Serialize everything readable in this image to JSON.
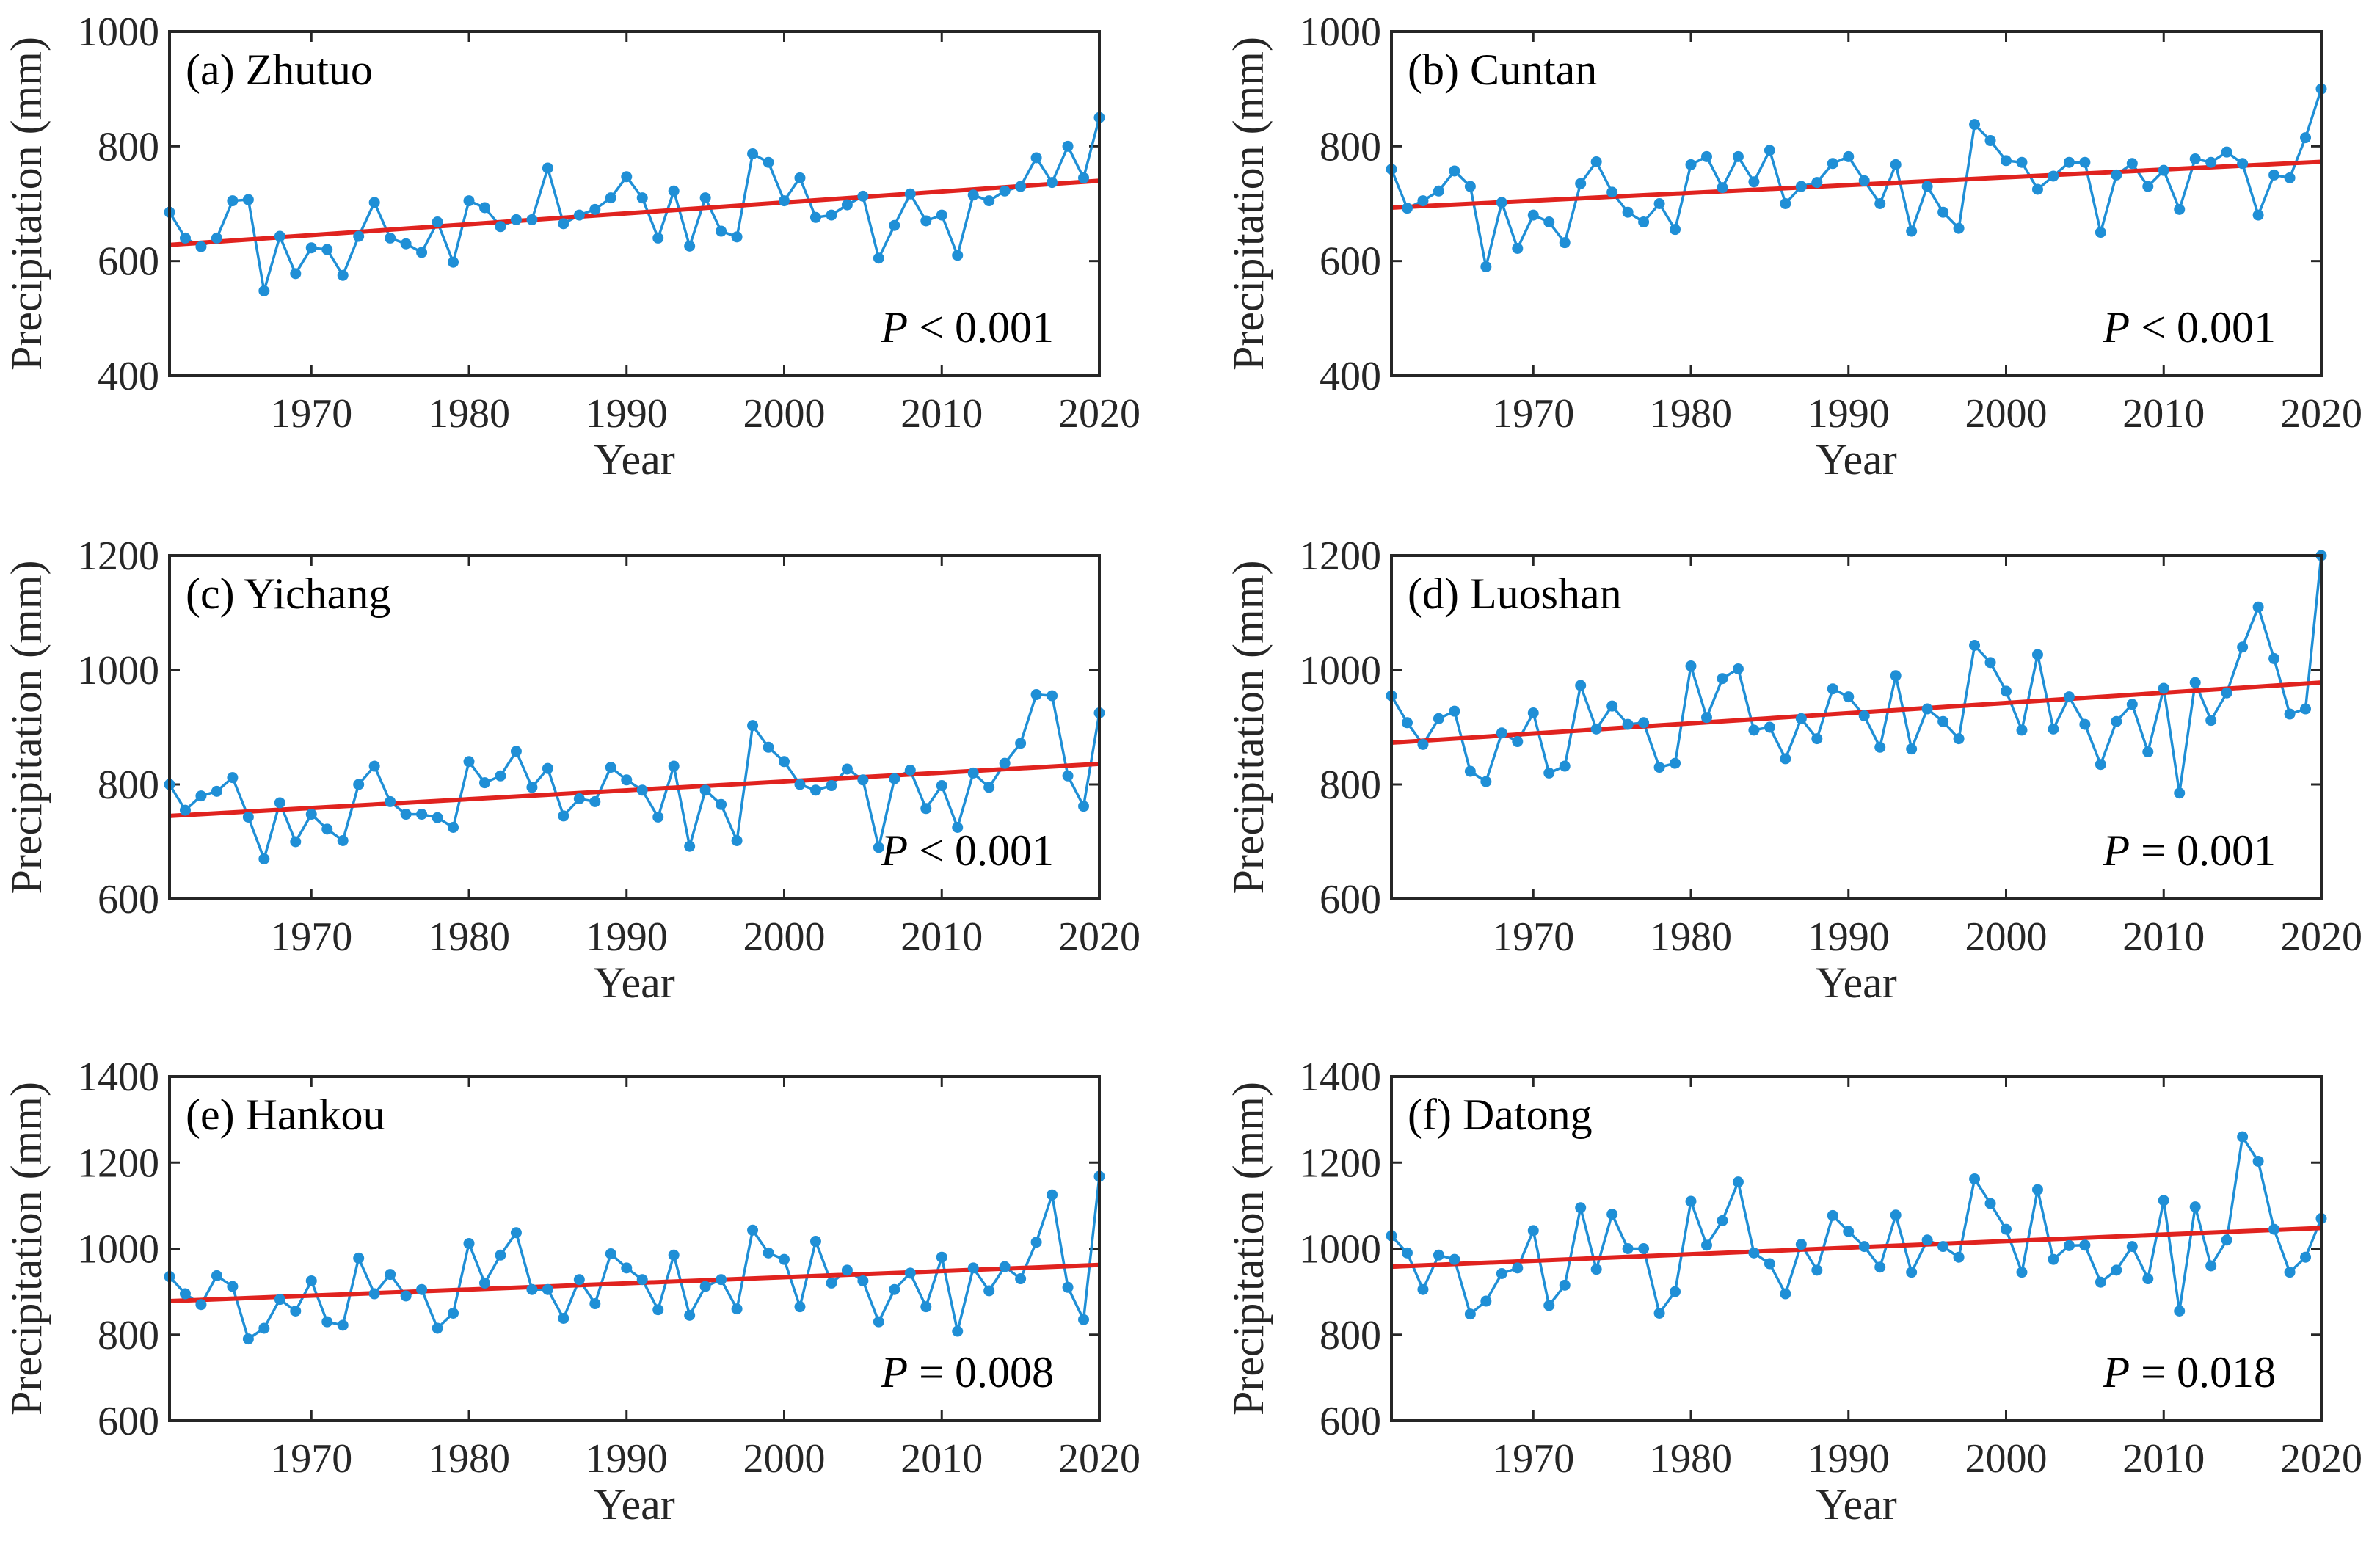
{
  "colors": {
    "series": "#1f8fd6",
    "trend": "#e0231f",
    "axes": "#262626"
  },
  "chart_data": [
    {
      "type": "line",
      "title": "(a) Zhutuo",
      "xlabel": "Year",
      "ylabel": "Precipitation (mm)",
      "xlim": [
        1961,
        2020
      ],
      "ylim": [
        400,
        1000
      ],
      "xticks": [
        1970,
        1980,
        1990,
        2000,
        2010,
        2020
      ],
      "yticks": [
        400,
        600,
        800,
        1000
      ],
      "p_label": "P",
      "p_rest": " < 0.001",
      "trend": [
        [
          1961,
          628
        ],
        [
          2020,
          740
        ]
      ],
      "x": [
        1961,
        1962,
        1963,
        1964,
        1965,
        1966,
        1967,
        1968,
        1969,
        1970,
        1971,
        1972,
        1973,
        1974,
        1975,
        1976,
        1977,
        1978,
        1979,
        1980,
        1981,
        1982,
        1983,
        1984,
        1985,
        1986,
        1987,
        1988,
        1989,
        1990,
        1991,
        1992,
        1993,
        1994,
        1995,
        1996,
        1997,
        1998,
        1999,
        2000,
        2001,
        2002,
        2003,
        2004,
        2005,
        2006,
        2007,
        2008,
        2009,
        2010,
        2011,
        2012,
        2013,
        2014,
        2015,
        2016,
        2017,
        2018,
        2019,
        2020
      ],
      "y": [
        685,
        640,
        625,
        640,
        705,
        707,
        548,
        643,
        578,
        623,
        620,
        575,
        643,
        702,
        640,
        630,
        615,
        668,
        598,
        705,
        693,
        660,
        672,
        672,
        762,
        665,
        680,
        690,
        710,
        747,
        710,
        640,
        722,
        626,
        710,
        652,
        642,
        787,
        772,
        705,
        745,
        676,
        680,
        698,
        713,
        605,
        662,
        717,
        670,
        680,
        610,
        715,
        705,
        722,
        730,
        780,
        737,
        800,
        745,
        850
      ]
    },
    {
      "type": "line",
      "title": "(b) Cuntan",
      "xlabel": "Year",
      "ylabel": "Precipitation (mm)",
      "xlim": [
        1961,
        2020
      ],
      "ylim": [
        400,
        1000
      ],
      "xticks": [
        1970,
        1980,
        1990,
        2000,
        2010,
        2020
      ],
      "yticks": [
        400,
        600,
        800,
        1000
      ],
      "p_label": "P",
      "p_rest": " < 0.001",
      "trend": [
        [
          1961,
          693
        ],
        [
          2020,
          773
        ]
      ],
      "x": [
        1961,
        1962,
        1963,
        1964,
        1965,
        1966,
        1967,
        1968,
        1969,
        1970,
        1971,
        1972,
        1973,
        1974,
        1975,
        1976,
        1977,
        1978,
        1979,
        1980,
        1981,
        1982,
        1983,
        1984,
        1985,
        1986,
        1987,
        1988,
        1989,
        1990,
        1991,
        1992,
        1993,
        1994,
        1995,
        1996,
        1997,
        1998,
        1999,
        2000,
        2001,
        2002,
        2003,
        2004,
        2005,
        2006,
        2007,
        2008,
        2009,
        2010,
        2011,
        2012,
        2013,
        2014,
        2015,
        2016,
        2017,
        2018,
        2019,
        2020
      ],
      "y": [
        760,
        692,
        705,
        722,
        757,
        730,
        590,
        702,
        622,
        680,
        668,
        632,
        735,
        773,
        720,
        685,
        668,
        700,
        655,
        768,
        782,
        728,
        782,
        738,
        793,
        700,
        730,
        737,
        770,
        782,
        740,
        700,
        768,
        652,
        730,
        685,
        657,
        838,
        810,
        775,
        772,
        725,
        748,
        772,
        772,
        650,
        750,
        770,
        730,
        758,
        690,
        778,
        772,
        790,
        770,
        680,
        750,
        745,
        815,
        900
      ]
    },
    {
      "type": "line",
      "title": "(c) Yichang",
      "xlabel": "Year",
      "ylabel": "Precipitation (mm)",
      "xlim": [
        1961,
        2020
      ],
      "ylim": [
        600,
        1200
      ],
      "xticks": [
        1970,
        1980,
        1990,
        2000,
        2010,
        2020
      ],
      "yticks": [
        600,
        800,
        1000,
        1200
      ],
      "p_label": "P",
      "p_rest": " < 0.001",
      "trend": [
        [
          1961,
          745
        ],
        [
          2020,
          836
        ]
      ],
      "x": [
        1961,
        1962,
        1963,
        1964,
        1965,
        1966,
        1967,
        1968,
        1969,
        1970,
        1971,
        1972,
        1973,
        1974,
        1975,
        1976,
        1977,
        1978,
        1979,
        1980,
        1981,
        1982,
        1983,
        1984,
        1985,
        1986,
        1987,
        1988,
        1989,
        1990,
        1991,
        1992,
        1993,
        1994,
        1995,
        1996,
        1997,
        1998,
        1999,
        2000,
        2001,
        2002,
        2003,
        2004,
        2005,
        2006,
        2007,
        2008,
        2009,
        2010,
        2011,
        2012,
        2013,
        2014,
        2015,
        2016,
        2017,
        2018,
        2019,
        2020
      ],
      "y": [
        800,
        755,
        780,
        788,
        812,
        743,
        670,
        768,
        700,
        748,
        722,
        702,
        800,
        832,
        770,
        748,
        748,
        742,
        725,
        840,
        803,
        815,
        858,
        795,
        828,
        745,
        775,
        770,
        830,
        808,
        790,
        743,
        832,
        692,
        790,
        765,
        702,
        903,
        865,
        840,
        800,
        790,
        798,
        827,
        808,
        690,
        810,
        825,
        758,
        798,
        725,
        820,
        795,
        837,
        872,
        957,
        955,
        815,
        762,
        925
      ]
    },
    {
      "type": "line",
      "title": "(d) Luoshan",
      "xlabel": "Year",
      "ylabel": "Precipitation (mm)",
      "xlim": [
        1961,
        2020
      ],
      "ylim": [
        600,
        1200
      ],
      "xticks": [
        1970,
        1980,
        1990,
        2000,
        2010,
        2020
      ],
      "yticks": [
        600,
        800,
        1000,
        1200
      ],
      "p_label": "P",
      "p_rest": " = 0.001",
      "trend": [
        [
          1961,
          873
        ],
        [
          2020,
          978
        ]
      ],
      "x": [
        1961,
        1962,
        1963,
        1964,
        1965,
        1966,
        1967,
        1968,
        1969,
        1970,
        1971,
        1972,
        1973,
        1974,
        1975,
        1976,
        1977,
        1978,
        1979,
        1980,
        1981,
        1982,
        1983,
        1984,
        1985,
        1986,
        1987,
        1988,
        1989,
        1990,
        1991,
        1992,
        1993,
        1994,
        1995,
        1996,
        1997,
        1998,
        1999,
        2000,
        2001,
        2002,
        2003,
        2004,
        2005,
        2006,
        2007,
        2008,
        2009,
        2010,
        2011,
        2012,
        2013,
        2014,
        2015,
        2016,
        2017,
        2018,
        2019,
        2020
      ],
      "y": [
        955,
        908,
        870,
        915,
        928,
        823,
        805,
        890,
        875,
        925,
        820,
        832,
        973,
        897,
        937,
        905,
        908,
        830,
        837,
        1007,
        917,
        985,
        1002,
        895,
        900,
        845,
        915,
        880,
        967,
        953,
        920,
        865,
        990,
        862,
        932,
        910,
        880,
        1043,
        1013,
        963,
        895,
        1027,
        897,
        953,
        905,
        835,
        910,
        940,
        857,
        968,
        785,
        978,
        912,
        960,
        1040,
        1110,
        1020,
        923,
        932,
        1200
      ]
    },
    {
      "type": "line",
      "title": "(e) Hankou",
      "xlabel": "Year",
      "ylabel": "Precipitation (mm)",
      "xlim": [
        1961,
        2020
      ],
      "ylim": [
        600,
        1400
      ],
      "xticks": [
        1970,
        1980,
        1990,
        2000,
        2010,
        2020
      ],
      "yticks": [
        600,
        800,
        1000,
        1200,
        1400
      ],
      "p_label": "P",
      "p_rest": " = 0.008",
      "trend": [
        [
          1961,
          878
        ],
        [
          2020,
          962
        ]
      ],
      "x": [
        1961,
        1962,
        1963,
        1964,
        1965,
        1966,
        1967,
        1968,
        1969,
        1970,
        1971,
        1972,
        1973,
        1974,
        1975,
        1976,
        1977,
        1978,
        1979,
        1980,
        1981,
        1982,
        1983,
        1984,
        1985,
        1986,
        1987,
        1988,
        1989,
        1990,
        1991,
        1992,
        1993,
        1994,
        1995,
        1996,
        1997,
        1998,
        1999,
        2000,
        2001,
        2002,
        2003,
        2004,
        2005,
        2006,
        2007,
        2008,
        2009,
        2010,
        2011,
        2012,
        2013,
        2014,
        2015,
        2016,
        2017,
        2018,
        2019,
        2020
      ],
      "y": [
        935,
        895,
        870,
        937,
        912,
        790,
        815,
        882,
        855,
        925,
        830,
        822,
        978,
        895,
        940,
        890,
        905,
        815,
        850,
        1012,
        920,
        985,
        1037,
        905,
        905,
        838,
        928,
        872,
        988,
        955,
        928,
        858,
        985,
        845,
        912,
        928,
        860,
        1043,
        990,
        975,
        865,
        1017,
        920,
        950,
        925,
        830,
        905,
        943,
        865,
        980,
        808,
        955,
        902,
        958,
        930,
        1015,
        1125,
        910,
        835,
        1168
      ]
    },
    {
      "type": "line",
      "title": "(f) Datong",
      "xlabel": "Year",
      "ylabel": "Precipitation (mm)",
      "xlim": [
        1961,
        2020
      ],
      "ylim": [
        600,
        1400
      ],
      "xticks": [
        1970,
        1980,
        1990,
        2000,
        2010,
        2020
      ],
      "yticks": [
        600,
        800,
        1000,
        1200,
        1400
      ],
      "p_label": "P",
      "p_rest": " = 0.018",
      "trend": [
        [
          1961,
          958
        ],
        [
          2020,
          1048
        ]
      ],
      "x": [
        1961,
        1962,
        1963,
        1964,
        1965,
        1966,
        1967,
        1968,
        1969,
        1970,
        1971,
        1972,
        1973,
        1974,
        1975,
        1976,
        1977,
        1978,
        1979,
        1980,
        1981,
        1982,
        1983,
        1984,
        1985,
        1986,
        1987,
        1988,
        1989,
        1990,
        1991,
        1992,
        1993,
        1994,
        1995,
        1996,
        1997,
        1998,
        1999,
        2000,
        2001,
        2002,
        2003,
        2004,
        2005,
        2006,
        2007,
        2008,
        2009,
        2010,
        2011,
        2012,
        2013,
        2014,
        2015,
        2016,
        2017,
        2018,
        2019,
        2020
      ],
      "y": [
        1030,
        990,
        905,
        985,
        975,
        848,
        878,
        942,
        955,
        1042,
        868,
        915,
        1095,
        952,
        1080,
        1000,
        1000,
        850,
        900,
        1110,
        1008,
        1065,
        1155,
        990,
        965,
        895,
        1010,
        950,
        1077,
        1040,
        1005,
        957,
        1078,
        945,
        1020,
        1005,
        980,
        1162,
        1105,
        1045,
        945,
        1137,
        975,
        1007,
        1008,
        922,
        950,
        1005,
        930,
        1112,
        855,
        1097,
        960,
        1020,
        1260,
        1203,
        1045,
        945,
        980,
        1070
      ]
    }
  ]
}
